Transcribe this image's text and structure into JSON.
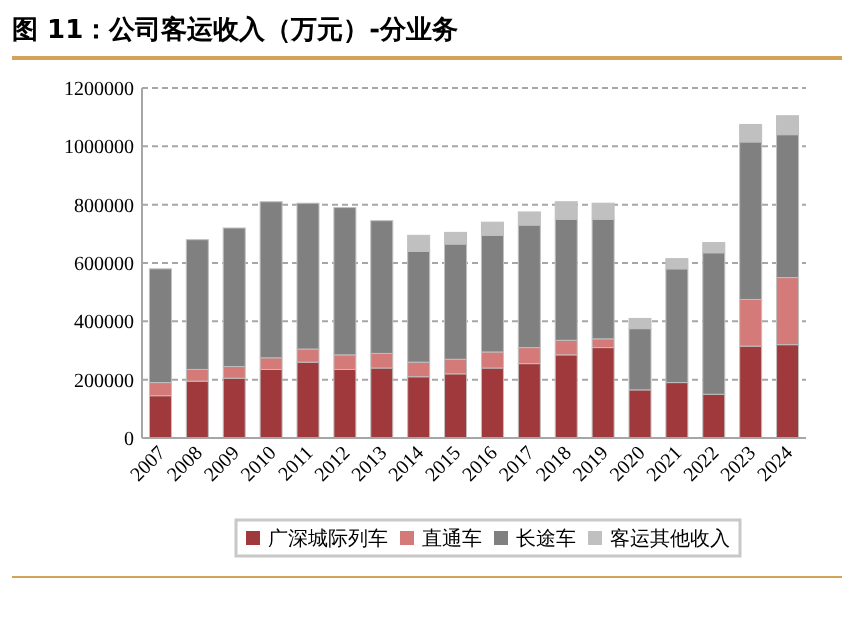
{
  "chart_data": {
    "type": "bar",
    "title": "图 11：公司客运收入（万元）-分业务",
    "stacked": true,
    "categories": [
      "2007",
      "2008",
      "2009",
      "2010",
      "2011",
      "2012",
      "2013",
      "2014",
      "2015",
      "2016",
      "2017",
      "2018",
      "2019",
      "2020",
      "2021",
      "2022",
      "2023",
      "2024"
    ],
    "series": [
      {
        "name": "广深城际列车",
        "color": "#a0393b",
        "values": [
          145000,
          195000,
          205000,
          235000,
          260000,
          235000,
          240000,
          210000,
          220000,
          240000,
          255000,
          285000,
          310000,
          165000,
          190000,
          150000,
          315000,
          320000
        ]
      },
      {
        "name": "直通车",
        "color": "#d47a78",
        "values": [
          45000,
          40000,
          40000,
          40000,
          45000,
          50000,
          50000,
          50000,
          50000,
          55000,
          55000,
          50000,
          30000,
          null,
          null,
          null,
          160000,
          230000
        ]
      },
      {
        "name": "长途车",
        "color": "#808080",
        "values": [
          390000,
          445000,
          475000,
          535000,
          500000,
          505000,
          455000,
          380000,
          395000,
          400000,
          420000,
          415000,
          410000,
          210000,
          390000,
          485000,
          540000,
          490000
        ]
      },
      {
        "name": "客运其他收入",
        "color": "#c0c0c0",
        "values": [
          null,
          null,
          null,
          null,
          null,
          null,
          null,
          55000,
          40000,
          45000,
          45000,
          60000,
          55000,
          35000,
          35000,
          35000,
          60000,
          65000
        ]
      }
    ],
    "ylim": [
      0,
      1200000
    ],
    "yticks": [
      0,
      200000,
      400000,
      600000,
      800000,
      1000000,
      1200000
    ],
    "grid": "y",
    "legend": "bottom"
  }
}
